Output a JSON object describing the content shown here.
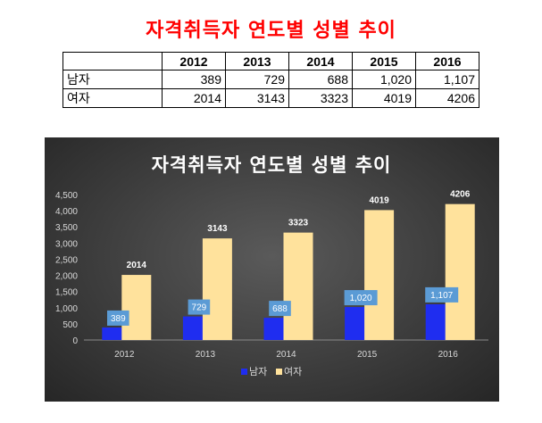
{
  "title": "자격취득자 연도별 성별 추이",
  "table": {
    "headers": [
      "",
      "2012",
      "2013",
      "2014",
      "2015",
      "2016"
    ],
    "rows": [
      {
        "label": "남자",
        "values": [
          "389",
          "729",
          "688",
          "1,020",
          "1,107"
        ]
      },
      {
        "label": "여자",
        "values": [
          "2014",
          "3143",
          "3323",
          "4019",
          "4206"
        ]
      }
    ]
  },
  "colors": {
    "male": "#1f2df0",
    "female": "#ffe29c",
    "title_red": "#ff0000",
    "male_label_bg": "#5b9bd5"
  },
  "chart_data": {
    "type": "bar",
    "title": "자격취득자 연도별 성별 추이",
    "categories": [
      "2012",
      "2013",
      "2014",
      "2015",
      "2016"
    ],
    "series": [
      {
        "name": "남자",
        "values": [
          389,
          729,
          688,
          1020,
          1107
        ],
        "labels": [
          "389",
          "729",
          "688",
          "1,020",
          "1,107"
        ]
      },
      {
        "name": "여자",
        "values": [
          2014,
          3143,
          3323,
          4019,
          4206
        ],
        "labels": [
          "2014",
          "3143",
          "3323",
          "4019",
          "4206"
        ]
      }
    ],
    "ylim": [
      0,
      4500
    ],
    "yticks": [
      "0",
      "500",
      "1,000",
      "1,500",
      "2,000",
      "2,500",
      "3,000",
      "3,500",
      "4,000",
      "4,500"
    ],
    "legend": "bottom",
    "grid": false
  }
}
